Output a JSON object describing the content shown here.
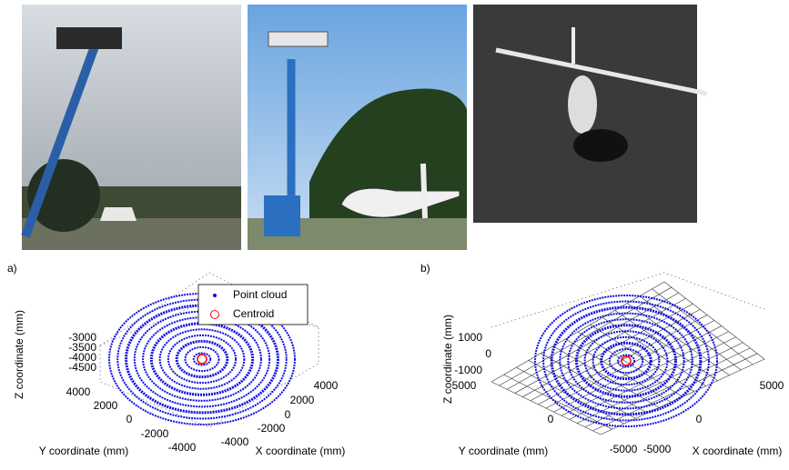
{
  "panels": [
    {
      "label": "a)",
      "legend": [
        "Point cloud",
        "Centroid"
      ],
      "z_axis_label": "Z coordinate (mm)",
      "z_ticks": [
        "-3000",
        "-3500",
        "-4000",
        "-4500"
      ],
      "y_axis_label": "Y coordinate (mm)",
      "y_ticks": [
        "4000",
        "2000",
        "0",
        "-2000",
        "-4000"
      ],
      "x_axis_label": "X coordinate (mm)",
      "x_ticks": [
        "4000",
        "2000",
        "0",
        "-2000",
        "-4000"
      ]
    },
    {
      "label": "b)",
      "z_axis_label": "Z coordinate (mm)",
      "z_ticks": [
        "1000",
        "0",
        "-1000"
      ],
      "y_axis_label": "Y coordinate (mm)",
      "y_ticks": [
        "5000",
        "0",
        "-5000"
      ],
      "x_axis_label": "X coordinate (mm)",
      "x_ticks": [
        "5000",
        "0",
        "-5000"
      ]
    }
  ]
}
